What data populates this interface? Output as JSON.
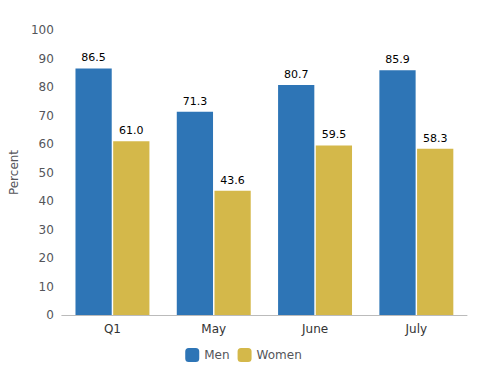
{
  "chart_data": {
    "type": "bar",
    "categories": [
      "Q1",
      "May",
      "June",
      "July"
    ],
    "series": [
      {
        "name": "Men",
        "color": "#2E75B6",
        "values": [
          86.5,
          71.3,
          80.7,
          85.9
        ]
      },
      {
        "name": "Women",
        "color": "#D4B84A",
        "values": [
          61.0,
          43.6,
          59.5,
          58.3
        ],
        "value_labels": [
          "61.0",
          "43.6",
          "59.5",
          "58.3"
        ]
      }
    ],
    "ylabel": "Percent",
    "ylim": [
      0,
      100
    ],
    "yticks": [
      0,
      10,
      20,
      30,
      40,
      50,
      60,
      70,
      80,
      90,
      100
    ],
    "grid": false,
    "legend": "bottom",
    "data_labels": true
  }
}
